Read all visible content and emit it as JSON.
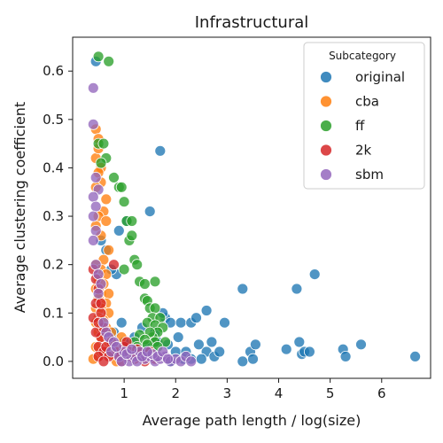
{
  "chart_data": {
    "type": "scatter",
    "title": "Infrastructural",
    "xlabel": "Average path  length / log(size)",
    "ylabel": "Average clustering coefficient",
    "xlim": [
      0.0,
      6.95
    ],
    "ylim": [
      -0.035,
      0.67
    ],
    "xticks": [
      1,
      2,
      3,
      4,
      5,
      6
    ],
    "yticks": [
      0.0,
      0.1,
      0.2,
      0.3,
      0.4,
      0.5,
      0.6
    ],
    "ytick_labels": [
      "0.0",
      "0.1",
      "0.2",
      "0.3",
      "0.4",
      "0.5",
      "0.6"
    ],
    "grid": false,
    "legend": {
      "title": "Subcategory",
      "placement": "top-right"
    },
    "series": [
      {
        "name": "original",
        "color": "#1f77b4",
        "points": [
          [
            0.45,
            0.62
          ],
          [
            1.5,
            0.31
          ],
          [
            1.7,
            0.435
          ],
          [
            0.85,
            0.18
          ],
          [
            0.55,
            0.25
          ],
          [
            1.05,
            0.29
          ],
          [
            0.65,
            0.23
          ],
          [
            0.9,
            0.27
          ],
          [
            0.75,
            0.19
          ],
          [
            1.2,
            0.05
          ],
          [
            1.35,
            0.07
          ],
          [
            1.6,
            0.06
          ],
          [
            1.8,
            0.09
          ],
          [
            1.9,
            0.08
          ],
          [
            2.05,
            0.05
          ],
          [
            2.1,
            0.08
          ],
          [
            2.3,
            0.08
          ],
          [
            2.4,
            0.09
          ],
          [
            2.45,
            0.035
          ],
          [
            2.6,
            0.105
          ],
          [
            2.6,
            0.02
          ],
          [
            2.7,
            0.04
          ],
          [
            2.75,
            0.01
          ],
          [
            2.85,
            0.02
          ],
          [
            2.95,
            0.08
          ],
          [
            3.3,
            0.15
          ],
          [
            3.3,
            0.0
          ],
          [
            3.45,
            0.02
          ],
          [
            3.5,
            0.005
          ],
          [
            3.55,
            0.035
          ],
          [
            4.15,
            0.025
          ],
          [
            4.35,
            0.15
          ],
          [
            4.4,
            0.04
          ],
          [
            4.45,
            0.015
          ],
          [
            4.5,
            0.02
          ],
          [
            4.6,
            0.02
          ],
          [
            4.7,
            0.18
          ],
          [
            5.25,
            0.025
          ],
          [
            5.3,
            0.01
          ],
          [
            5.6,
            0.035
          ],
          [
            6.65,
            0.01
          ],
          [
            1.1,
            0.03
          ],
          [
            1.2,
            0.02
          ],
          [
            1.35,
            0.01
          ],
          [
            1.45,
            0.03
          ],
          [
            1.55,
            0.02
          ],
          [
            1.65,
            0.04
          ],
          [
            1.75,
            0.1
          ],
          [
            1.85,
            0.035
          ],
          [
            2.0,
            0.02
          ],
          [
            2.15,
            0.005
          ],
          [
            2.2,
            0.02
          ],
          [
            2.3,
            0.005
          ],
          [
            0.95,
            0.08
          ],
          [
            1.0,
            0.04
          ],
          [
            0.8,
            0.06
          ],
          [
            0.7,
            0.02
          ],
          [
            1.9,
            0.0
          ],
          [
            2.5,
            0.005
          ]
        ]
      },
      {
        "name": "cba",
        "color": "#ff7f0e",
        "points": [
          [
            0.45,
            0.48
          ],
          [
            0.5,
            0.46
          ],
          [
            0.45,
            0.42
          ],
          [
            0.5,
            0.44
          ],
          [
            0.55,
            0.4
          ],
          [
            0.5,
            0.39
          ],
          [
            0.55,
            0.37
          ],
          [
            0.45,
            0.36
          ],
          [
            0.65,
            0.335
          ],
          [
            0.6,
            0.31
          ],
          [
            0.5,
            0.3
          ],
          [
            0.65,
            0.29
          ],
          [
            0.45,
            0.28
          ],
          [
            0.55,
            0.26
          ],
          [
            0.7,
            0.23
          ],
          [
            0.6,
            0.21
          ],
          [
            0.45,
            0.2
          ],
          [
            0.55,
            0.19
          ],
          [
            0.65,
            0.18
          ],
          [
            0.5,
            0.17
          ],
          [
            0.6,
            0.16
          ],
          [
            0.45,
            0.15
          ],
          [
            0.55,
            0.14
          ],
          [
            0.7,
            0.14
          ],
          [
            0.5,
            0.13
          ],
          [
            0.65,
            0.12
          ],
          [
            0.45,
            0.11
          ],
          [
            0.55,
            0.11
          ],
          [
            0.7,
            0.1
          ],
          [
            0.5,
            0.09
          ],
          [
            0.6,
            0.085
          ],
          [
            0.45,
            0.08
          ],
          [
            0.65,
            0.07
          ],
          [
            0.5,
            0.06
          ],
          [
            0.55,
            0.05
          ],
          [
            0.7,
            0.04
          ],
          [
            0.45,
            0.03
          ],
          [
            0.6,
            0.02
          ],
          [
            0.5,
            0.01
          ],
          [
            0.4,
            0.005
          ],
          [
            0.75,
            0.06
          ],
          [
            0.8,
            0.03
          ],
          [
            0.9,
            0.02
          ],
          [
            1.0,
            0.01
          ],
          [
            0.85,
            0.0
          ],
          [
            0.95,
            0.05
          ],
          [
            1.1,
            0.015
          ],
          [
            0.55,
            0.07
          ],
          [
            0.65,
            0.02
          ],
          [
            0.75,
            0.015
          ]
        ]
      },
      {
        "name": "ff",
        "color": "#2ca02c",
        "points": [
          [
            0.5,
            0.63
          ],
          [
            0.7,
            0.62
          ],
          [
            0.5,
            0.45
          ],
          [
            0.6,
            0.45
          ],
          [
            0.65,
            0.42
          ],
          [
            0.55,
            0.41
          ],
          [
            0.8,
            0.38
          ],
          [
            0.9,
            0.36
          ],
          [
            0.95,
            0.36
          ],
          [
            1.0,
            0.33
          ],
          [
            1.05,
            0.29
          ],
          [
            1.15,
            0.29
          ],
          [
            1.1,
            0.25
          ],
          [
            1.15,
            0.26
          ],
          [
            1.2,
            0.21
          ],
          [
            1.25,
            0.2
          ],
          [
            1.0,
            0.19
          ],
          [
            1.3,
            0.165
          ],
          [
            1.4,
            0.16
          ],
          [
            1.6,
            0.165
          ],
          [
            1.4,
            0.13
          ],
          [
            1.45,
            0.125
          ],
          [
            1.5,
            0.11
          ],
          [
            1.6,
            0.11
          ],
          [
            1.55,
            0.09
          ],
          [
            1.7,
            0.09
          ],
          [
            1.45,
            0.08
          ],
          [
            1.6,
            0.075
          ],
          [
            1.75,
            0.07
          ],
          [
            1.65,
            0.06
          ],
          [
            1.55,
            0.05
          ],
          [
            1.5,
            0.06
          ],
          [
            1.3,
            0.055
          ],
          [
            1.4,
            0.045
          ],
          [
            1.2,
            0.04
          ],
          [
            1.6,
            0.04
          ],
          [
            1.8,
            0.04
          ],
          [
            1.35,
            0.02
          ],
          [
            1.25,
            0.03
          ],
          [
            1.45,
            0.035
          ],
          [
            1.5,
            0.02
          ],
          [
            1.65,
            0.03
          ]
        ]
      },
      {
        "name": "2k",
        "color": "#d62728",
        "points": [
          [
            0.4,
            0.09
          ],
          [
            0.45,
            0.12
          ],
          [
            0.5,
            0.15
          ],
          [
            0.4,
            0.19
          ],
          [
            0.45,
            0.17
          ],
          [
            0.55,
            0.05
          ],
          [
            0.5,
            0.03
          ],
          [
            0.6,
            0.02
          ],
          [
            0.45,
            0.06
          ],
          [
            0.5,
            0.01
          ],
          [
            0.55,
            0.1
          ],
          [
            0.6,
            0.07
          ],
          [
            0.8,
            0.2
          ],
          [
            0.75,
            0.04
          ],
          [
            0.85,
            0.02
          ],
          [
            0.9,
            0.01
          ],
          [
            1.0,
            0.03
          ],
          [
            1.1,
            0.02
          ],
          [
            1.2,
            0.005
          ],
          [
            1.3,
            0.015
          ],
          [
            1.4,
            0.0
          ],
          [
            1.5,
            0.02
          ],
          [
            1.6,
            0.005
          ],
          [
            0.95,
            0.0
          ],
          [
            0.65,
            0.03
          ],
          [
            0.7,
            0.01
          ],
          [
            1.05,
            0.04
          ],
          [
            0.5,
            0.08
          ],
          [
            0.55,
            0.12
          ],
          [
            0.6,
            0.0
          ],
          [
            1.15,
            0.01
          ],
          [
            1.25,
            0.025
          ]
        ]
      },
      {
        "name": "sbm",
        "color": "#9467bd",
        "points": [
          [
            0.4,
            0.565
          ],
          [
            0.4,
            0.49
          ],
          [
            0.45,
            0.38
          ],
          [
            0.5,
            0.355
          ],
          [
            0.4,
            0.34
          ],
          [
            0.45,
            0.32
          ],
          [
            0.4,
            0.3
          ],
          [
            0.45,
            0.27
          ],
          [
            0.4,
            0.25
          ],
          [
            0.45,
            0.2
          ],
          [
            0.5,
            0.18
          ],
          [
            0.55,
            0.16
          ],
          [
            0.5,
            0.14
          ],
          [
            0.6,
            0.08
          ],
          [
            0.65,
            0.06
          ],
          [
            0.7,
            0.05
          ],
          [
            0.8,
            0.04
          ],
          [
            0.75,
            0.02
          ],
          [
            0.9,
            0.01
          ],
          [
            1.0,
            0.02
          ],
          [
            1.1,
            0.0
          ],
          [
            1.2,
            0.01
          ],
          [
            1.3,
            0.02
          ],
          [
            1.4,
            0.005
          ],
          [
            1.5,
            0.01
          ],
          [
            1.6,
            0.0
          ],
          [
            1.7,
            0.005
          ],
          [
            1.8,
            0.01
          ],
          [
            1.9,
            0.0
          ],
          [
            2.0,
            0.005
          ],
          [
            2.1,
            0.0
          ],
          [
            2.2,
            0.01
          ],
          [
            2.3,
            0.0
          ],
          [
            1.55,
            0.015
          ],
          [
            1.65,
            0.01
          ],
          [
            1.75,
            0.02
          ],
          [
            1.85,
            0.005
          ],
          [
            0.85,
            0.03
          ],
          [
            0.95,
            0.0
          ],
          [
            1.05,
            0.015
          ],
          [
            1.15,
            0.025
          ],
          [
            1.25,
            0.0
          ],
          [
            1.35,
            0.01
          ],
          [
            1.45,
            0.02
          ]
        ]
      }
    ]
  }
}
